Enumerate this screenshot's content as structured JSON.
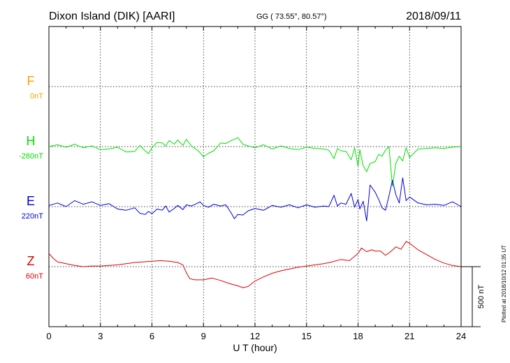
{
  "header": {
    "station": "Dixon Island (DIK)  [AARI]",
    "coords": "GG ( 73.55°,  80.57°)",
    "date": "2018/09/11"
  },
  "footer": {
    "plotted": "Plotted at 2018/10/12 01:35 UT"
  },
  "chart_data": {
    "type": "line",
    "title": "Dixon Island (DIK)  [AARI]",
    "xlabel": "U T (hour)",
    "ylabel": "",
    "xlim": [
      0,
      24
    ],
    "xticks": [
      0,
      3,
      6,
      9,
      12,
      15,
      18,
      21,
      24
    ],
    "scale_bar_label": "500 nT",
    "scale_bar_nT": 500,
    "grid": true,
    "components": [
      {
        "name": "F",
        "offset": "0nT",
        "color": "#ffa500"
      },
      {
        "name": "H",
        "offset": "-280nT",
        "color": "#00e000"
      },
      {
        "name": "E",
        "offset": "220nT",
        "color": "#0000e0"
      },
      {
        "name": "Z",
        "offset": "60nT",
        "color": "#e00000"
      }
    ],
    "series": [
      {
        "name": "H",
        "color": "#00e000",
        "x": [
          0,
          0.5,
          1,
          1.5,
          2,
          2.5,
          3,
          3.5,
          4,
          4.5,
          5,
          5.3,
          5.6,
          5.8,
          6,
          6.3,
          6.6,
          6.8,
          7,
          7.3,
          7.5,
          7.8,
          8,
          8.3,
          8.6,
          8.8,
          9,
          9.3,
          9.6,
          10,
          10.3,
          10.6,
          10.8,
          11,
          11.3,
          11.6,
          12,
          12.5,
          13,
          13.5,
          14,
          14.5,
          15,
          15.5,
          16,
          16.3,
          16.6,
          16.8,
          17,
          17.3,
          17.6,
          17.8,
          18,
          18.1,
          18.3,
          18.5,
          18.7,
          19,
          19.2,
          19.4,
          19.6,
          19.8,
          20,
          20.2,
          20.4,
          20.6,
          20.8,
          21,
          21.5,
          22,
          22.5,
          23,
          23.5,
          24
        ],
        "values": [
          0,
          15,
          -5,
          20,
          -10,
          5,
          -25,
          -20,
          -5,
          -45,
          -40,
          10,
          -35,
          -60,
          -10,
          35,
          30,
          5,
          50,
          20,
          55,
          10,
          60,
          5,
          -25,
          -50,
          -85,
          -55,
          -35,
          30,
          25,
          50,
          60,
          75,
          20,
          5,
          -10,
          15,
          -20,
          5,
          -15,
          -25,
          -5,
          -15,
          -20,
          -30,
          -100,
          -15,
          -35,
          -40,
          -110,
          -10,
          -165,
          -25,
          -160,
          -210,
          -140,
          -125,
          -65,
          -80,
          -30,
          0,
          -330,
          -140,
          -80,
          -120,
          -10,
          -90,
          -20,
          -15,
          -10,
          -15,
          -5,
          0
        ]
      },
      {
        "name": "E",
        "color": "#0000e0",
        "x": [
          0,
          0.5,
          1,
          1.5,
          2,
          2.5,
          3,
          3.5,
          4,
          4.5,
          5,
          5.3,
          5.6,
          5.8,
          6,
          6.3,
          6.6,
          6.8,
          7,
          7.3,
          7.5,
          7.8,
          8,
          8.3,
          8.6,
          8.8,
          9,
          9.3,
          9.6,
          10,
          10.3,
          10.6,
          10.8,
          11,
          11.3,
          11.6,
          12,
          12.5,
          13,
          13.5,
          14,
          14.5,
          15,
          15.5,
          16,
          16.3,
          16.6,
          16.8,
          17,
          17.3,
          17.6,
          17.8,
          18,
          18.1,
          18.3,
          18.5,
          18.7,
          19,
          19.2,
          19.4,
          19.6,
          19.8,
          20,
          20.2,
          20.4,
          20.6,
          20.8,
          21,
          21.5,
          22,
          22.5,
          23,
          23.5,
          24
        ],
        "values": [
          10,
          30,
          0,
          50,
          20,
          40,
          10,
          25,
          -20,
          -30,
          -10,
          -55,
          -65,
          -40,
          -60,
          -20,
          -30,
          5,
          -45,
          -15,
          10,
          -25,
          15,
          5,
          25,
          40,
          10,
          -5,
          20,
          5,
          15,
          -50,
          -100,
          -65,
          -70,
          -35,
          -15,
          -30,
          10,
          -5,
          15,
          -10,
          15,
          -5,
          5,
          0,
          95,
          5,
          30,
          20,
          110,
          -5,
          60,
          -20,
          45,
          -120,
          180,
          120,
          60,
          -10,
          -30,
          90,
          220,
          100,
          30,
          240,
          50,
          80,
          30,
          15,
          20,
          10,
          40,
          0
        ]
      },
      {
        "name": "Z",
        "color": "#e00000",
        "x": [
          0,
          0.25,
          0.5,
          1,
          1.5,
          2,
          2.5,
          3,
          3.5,
          4,
          4.5,
          5,
          5.5,
          6,
          6.5,
          7,
          7.5,
          7.8,
          8,
          8.2,
          8.5,
          9,
          9.5,
          10,
          10.5,
          11,
          11.3,
          11.6,
          12,
          12.5,
          13,
          13.5,
          14,
          14.5,
          15,
          15.5,
          16,
          16.5,
          17,
          17.5,
          18,
          18.2,
          18.5,
          18.8,
          19,
          19.3,
          19.6,
          19.9,
          20.2,
          20.5,
          20.8,
          21,
          21.5,
          22,
          22.5,
          23,
          23.5,
          24
        ],
        "values": [
          110,
          70,
          40,
          25,
          10,
          0,
          5,
          5,
          10,
          15,
          25,
          35,
          40,
          45,
          50,
          45,
          35,
          15,
          -50,
          -100,
          -110,
          -110,
          -95,
          -115,
          -140,
          -160,
          -175,
          -165,
          -120,
          -85,
          -55,
          -35,
          -20,
          -5,
          5,
          15,
          25,
          40,
          60,
          50,
          110,
          155,
          125,
          140,
          130,
          130,
          95,
          125,
          165,
          145,
          210,
          195,
          140,
          100,
          60,
          30,
          10,
          0
        ]
      }
    ]
  }
}
